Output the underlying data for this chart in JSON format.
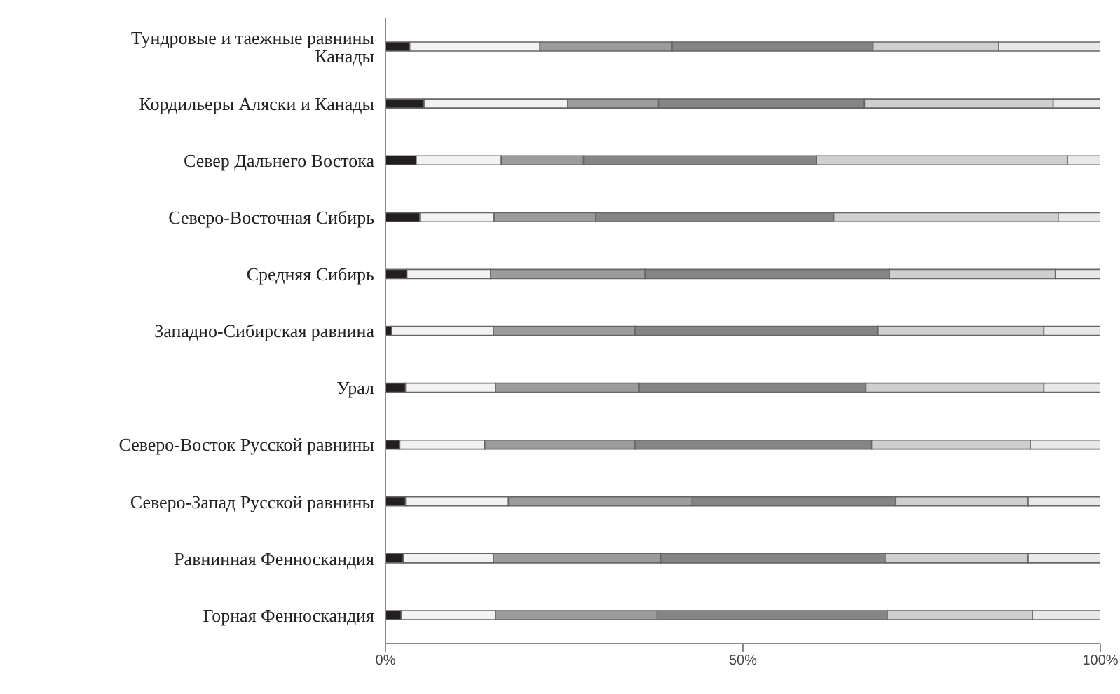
{
  "chart_data": {
    "type": "bar",
    "orientation": "horizontal",
    "stacked": true,
    "categories": [
      "Тундровые и таежные равнины Канады",
      "Кордильеры Аляски и Канады",
      "Север Дальнего Востока ",
      "Северо-Восточная Сибирь",
      "Средняя Сибирь",
      "Западно-Сибирская равнина",
      "Урал",
      "Северо-Восток Русской равнины",
      "Северо-Запад Русской равнины",
      "Равнинная Фенноскандия",
      "Горная Фенноскандия"
    ],
    "series": [
      {
        "color": "#231f20",
        "values": [
          3.4,
          5.4,
          4.3,
          4.8,
          3.0,
          0.9,
          2.8,
          2.0,
          2.8,
          2.5,
          2.2
        ]
      },
      {
        "color": "#f2f2f2",
        "values": [
          18.2,
          20.1,
          11.9,
          10.4,
          11.7,
          14.2,
          12.6,
          11.9,
          14.4,
          12.6,
          13.2
        ]
      },
      {
        "color": "#9c9c9c",
        "values": [
          18.5,
          12.7,
          11.5,
          14.2,
          21.6,
          19.8,
          20.1,
          21.0,
          25.7,
          23.4,
          22.6
        ]
      },
      {
        "color": "#858585",
        "values": [
          28.1,
          28.8,
          32.6,
          33.3,
          34.2,
          34.0,
          31.7,
          33.1,
          28.5,
          31.4,
          32.2
        ]
      },
      {
        "color": "#cfcfcf",
        "values": [
          17.6,
          26.4,
          35.1,
          31.4,
          23.2,
          23.2,
          24.9,
          22.2,
          18.5,
          20.0,
          20.3
        ]
      },
      {
        "color": "#e8e8e8",
        "values": [
          14.2,
          6.6,
          4.6,
          5.9,
          6.3,
          7.9,
          7.9,
          9.8,
          10.1,
          10.1,
          9.5
        ]
      }
    ],
    "xlim": [
      0,
      100
    ],
    "xticks": [
      {
        "value": 0,
        "label": "0%"
      },
      {
        "value": 50,
        "label": "50%"
      },
      {
        "value": 100,
        "label": "100%"
      }
    ],
    "grid": false,
    "legend": false
  }
}
